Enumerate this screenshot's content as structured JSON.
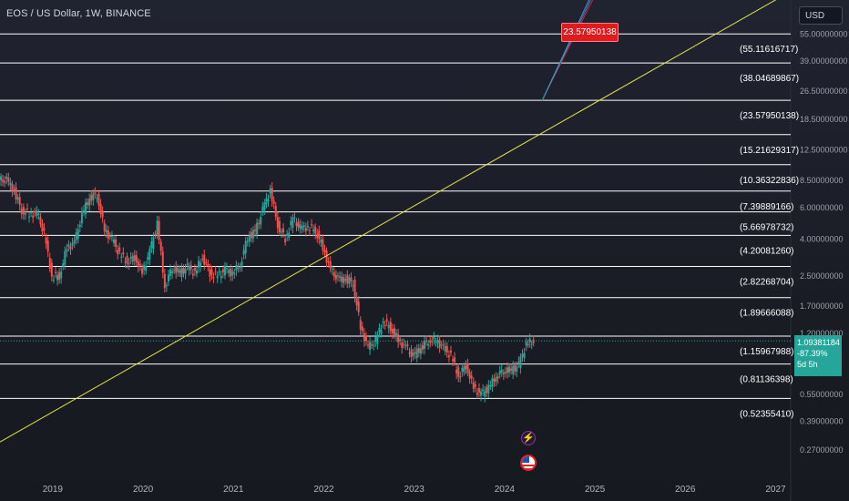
{
  "header": {
    "symbol_title": "EOS / US Dollar, 1W, BINANCE"
  },
  "toolbar": {
    "currency": "USD"
  },
  "colors": {
    "up": "#26a69a",
    "down": "#ef5350",
    "trendline": "#e6e24a",
    "level_line": "#ffffff",
    "annotation_bg": "#e01a1f",
    "price_tag_bg": "#26a69a"
  },
  "annotation": {
    "label": "23.57950138"
  },
  "price_tag": {
    "price": "1.09381184",
    "change": "-87.39%",
    "countdown": "5d 5h"
  },
  "chart_data": {
    "type": "line",
    "title": "EOS / US Dollar, 1W, BINANCE",
    "xlabel": "",
    "ylabel": "",
    "y_scale": "log",
    "ylim": [
      0.2,
      85
    ],
    "x_range": [
      "2018-06",
      "2027-03"
    ],
    "x_tick_labels": [
      "2019",
      "2020",
      "2021",
      "2022",
      "2023",
      "2024",
      "2025",
      "2026",
      "2027"
    ],
    "y_tick_labels": [
      "55.00000000",
      "39.00000000",
      "26.50000000",
      "18.50000000",
      "12.50000000",
      "8.50000000",
      "6.00000000",
      "4.00000000",
      "2.50000000",
      "1.70000000",
      "1.20000000",
      "0.55000000",
      "0.39000000",
      "0.27000000"
    ],
    "horizontal_levels": [
      {
        "label": "(55.11616717)",
        "value": 55.11616717
      },
      {
        "label": "(38.04689867)",
        "value": 38.04689867
      },
      {
        "label": "(23.57950138)",
        "value": 23.57950138
      },
      {
        "label": "(15.21629317)",
        "value": 15.21629317
      },
      {
        "label": "(10.36322836)",
        "value": 10.36322836
      },
      {
        "label": "(7.39889166)",
        "value": 7.39889166
      },
      {
        "label": "(5.66978732)",
        "value": 5.66978732
      },
      {
        "label": "(4.20081260)",
        "value": 4.2008126
      },
      {
        "label": "(2.82268704)",
        "value": 2.82268704
      },
      {
        "label": "(1.89666088)",
        "value": 1.89666088
      },
      {
        "label": "(1.15967988)",
        "value": 1.15967988
      },
      {
        "label": "(0.81136398)",
        "value": 0.81136398
      },
      {
        "label": "(0.52355410)",
        "value": 0.5235541
      }
    ],
    "trendline": {
      "points": [
        [
          "2018-06",
          0.3
        ],
        [
          "2027-03",
          95
        ]
      ]
    },
    "projection_lines": [
      {
        "color": "#e02020",
        "from": [
          "2024-06",
          23.58
        ],
        "to": [
          "2025-01",
          90
        ]
      },
      {
        "color": "#4a6fd8",
        "from": [
          "2024-06",
          23.58
        ],
        "to": [
          "2025-01",
          95
        ]
      },
      {
        "color": "#26a6c8",
        "from": [
          "2024-06",
          23.58
        ],
        "to": [
          "2025-01",
          100
        ]
      }
    ],
    "series": [
      {
        "type": "candlestick_close_approx",
        "x": [
          "2018-06",
          "2018-07",
          "2018-08",
          "2018-09",
          "2018-10",
          "2018-11",
          "2018-12",
          "2019-01",
          "2019-02",
          "2019-03",
          "2019-04",
          "2019-05",
          "2019-06",
          "2019-07",
          "2019-08",
          "2019-09",
          "2019-10",
          "2019-11",
          "2019-12",
          "2020-01",
          "2020-02",
          "2020-03",
          "2020-04",
          "2020-05",
          "2020-06",
          "2020-07",
          "2020-08",
          "2020-09",
          "2020-10",
          "2020-11",
          "2020-12",
          "2021-01",
          "2021-02",
          "2021-03",
          "2021-04",
          "2021-05",
          "2021-06",
          "2021-07",
          "2021-08",
          "2021-09",
          "2021-10",
          "2021-11",
          "2021-12",
          "2022-01",
          "2022-02",
          "2022-03",
          "2022-04",
          "2022-05",
          "2022-06",
          "2022-07",
          "2022-08",
          "2022-09",
          "2022-10",
          "2022-11",
          "2022-12",
          "2023-01",
          "2023-02",
          "2023-03",
          "2023-04",
          "2023-05",
          "2023-06",
          "2023-07",
          "2023-08",
          "2023-09",
          "2023-10",
          "2023-11",
          "2023-12",
          "2024-01",
          "2024-02",
          "2024-03",
          "2024-04"
        ],
        "values": [
          8.5,
          7.4,
          5.8,
          5.5,
          5.6,
          4.3,
          2.5,
          2.5,
          3.6,
          3.8,
          5.5,
          6.8,
          7.1,
          4.5,
          4.0,
          3.3,
          3.0,
          3.2,
          2.6,
          3.4,
          4.9,
          2.2,
          2.8,
          2.6,
          2.8,
          2.6,
          3.2,
          2.6,
          2.5,
          2.7,
          2.6,
          2.9,
          4.1,
          4.4,
          5.8,
          7.5,
          4.8,
          4.0,
          5.2,
          4.6,
          4.7,
          4.5,
          3.6,
          2.7,
          2.4,
          2.4,
          2.3,
          1.3,
          1.0,
          1.1,
          1.4,
          1.3,
          1.1,
          1.0,
          0.9,
          1.0,
          1.1,
          1.1,
          1.0,
          0.9,
          0.7,
          0.8,
          0.6,
          0.55,
          0.6,
          0.7,
          0.75,
          0.75,
          0.8,
          1.05,
          1.09
        ]
      }
    ]
  }
}
